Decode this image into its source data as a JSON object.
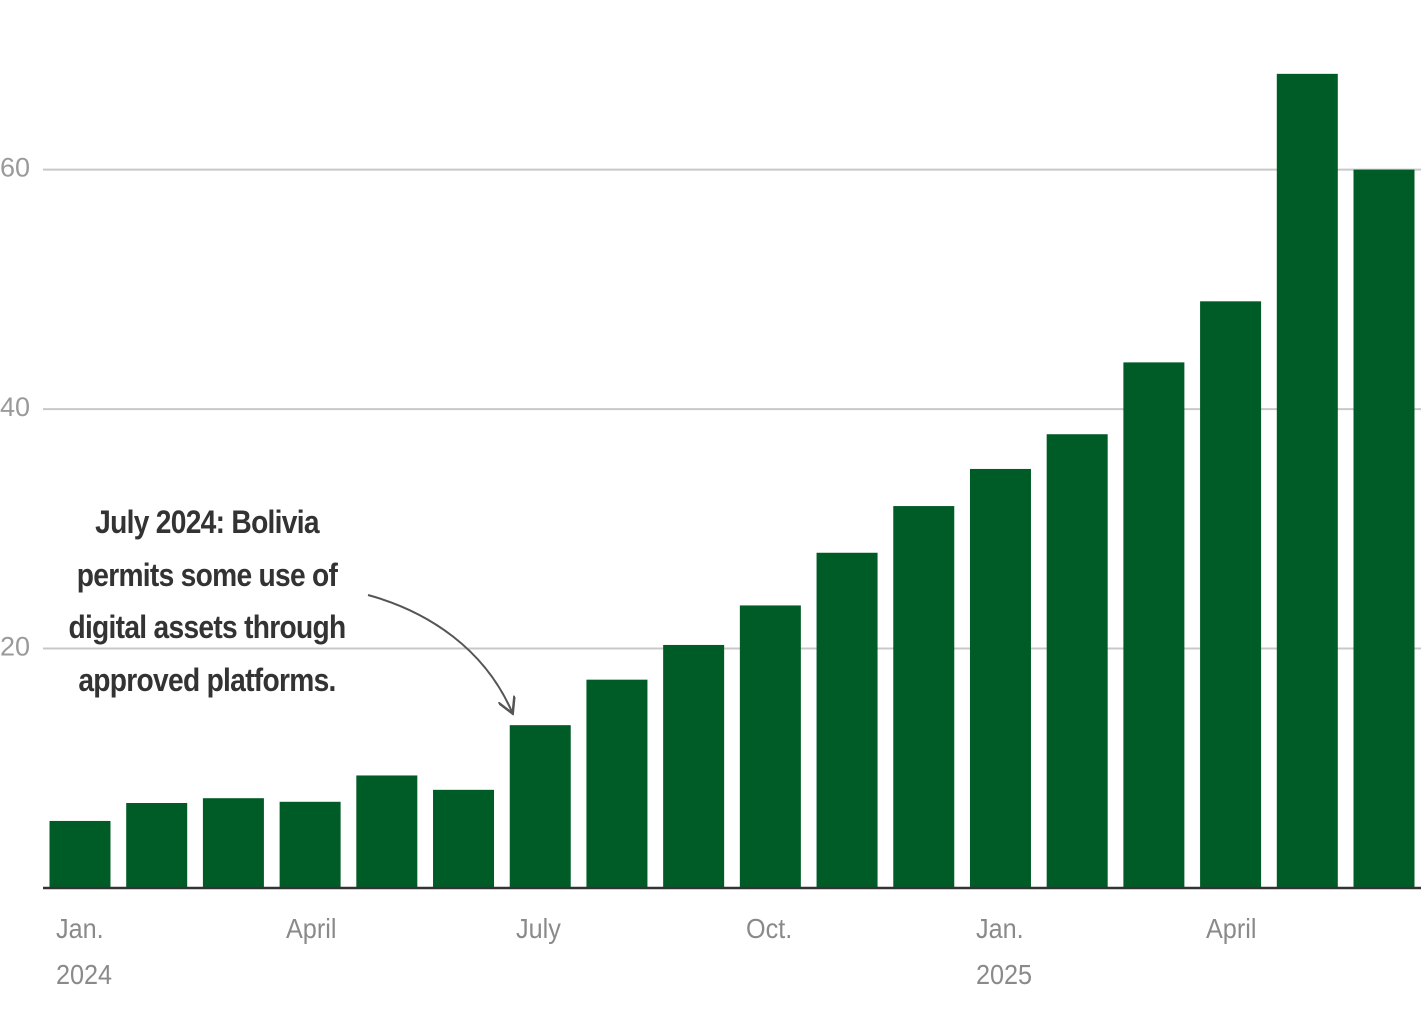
{
  "chart_data": {
    "type": "bar",
    "annotation": "July 2024: Bolivia\npermits some use of\ndigital assets through\napproved platforms.",
    "categories": [
      "Jan.\n2024",
      null,
      null,
      "April",
      null,
      null,
      "July",
      null,
      null,
      "Oct.",
      null,
      null,
      "Jan.\n2025",
      null,
      null,
      "April",
      null,
      null
    ],
    "values": [
      5.6,
      7.1,
      7.5,
      7.2,
      9.4,
      8.2,
      13.6,
      17.4,
      20.3,
      23.6,
      28.0,
      31.9,
      35.0,
      37.9,
      43.9,
      49.0,
      68.0,
      60.0
    ],
    "color": "#005c27",
    "ylim": [
      0,
      74
    ],
    "yticks": [
      20,
      40,
      60
    ],
    "grid": true
  }
}
